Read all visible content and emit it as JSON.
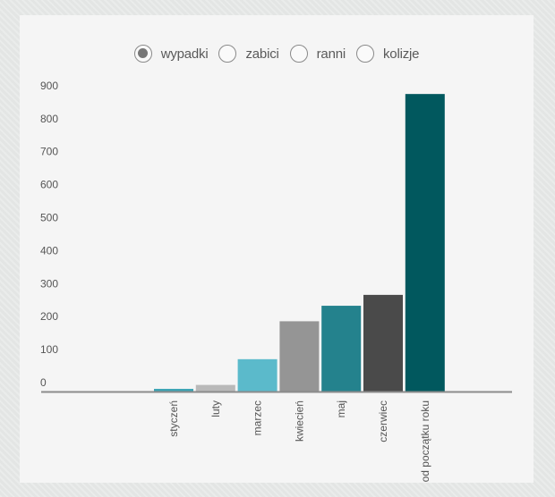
{
  "filters": [
    {
      "label": "wypadki",
      "checked": true
    },
    {
      "label": "zabici",
      "checked": false
    },
    {
      "label": "ranni",
      "checked": false
    },
    {
      "label": "kolizje",
      "checked": false
    }
  ],
  "chart_data": {
    "type": "bar",
    "categories": [
      "styczeń",
      "luty",
      "marzec",
      "kwiecień",
      "maj",
      "czerwiec",
      "od początku roku"
    ],
    "values": [
      8,
      20,
      98,
      213,
      260,
      293,
      902
    ],
    "colors": [
      "#3aa2b3",
      "#b9b9b9",
      "#5bbacb",
      "#959595",
      "#24828d",
      "#4a4a4a",
      "#01585e"
    ],
    "yticks": [
      0,
      100,
      200,
      300,
      400,
      500,
      600,
      700,
      800,
      900
    ],
    "ylim": [
      0,
      900
    ],
    "grid": false,
    "title": "",
    "xlabel": "",
    "ylabel": ""
  }
}
